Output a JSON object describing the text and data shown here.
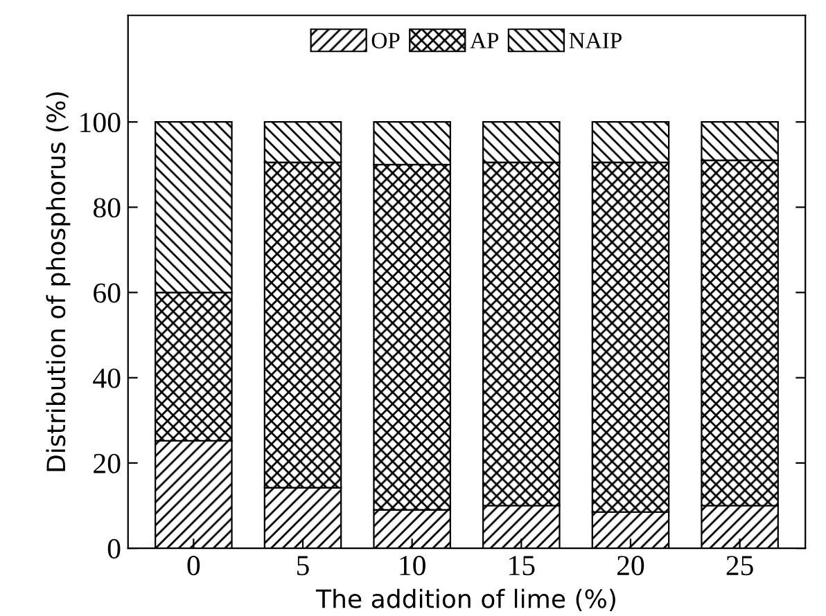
{
  "chart_data": {
    "type": "bar",
    "stacked": true,
    "xlabel": "The addition of lime (%)",
    "ylabel": "Distribution of phosphorus (%)",
    "categories": [
      "0",
      "5",
      "10",
      "15",
      "20",
      "25"
    ],
    "series": [
      {
        "name": "OP",
        "color": "#000000",
        "values": [
          25.2,
          14.2,
          9.0,
          10.0,
          8.5,
          10.0
        ]
      },
      {
        "name": "AP",
        "color": "#000000",
        "values": [
          34.8,
          76.3,
          81.0,
          80.5,
          82.0,
          81.0
        ]
      },
      {
        "name": "NAIP",
        "color": "#000000",
        "values": [
          40.0,
          9.5,
          10.0,
          9.5,
          9.5,
          9.0
        ]
      }
    ],
    "ylim": [
      0,
      125
    ],
    "yticks": [
      0,
      20,
      40,
      60,
      80,
      100
    ],
    "legend": "top",
    "grid": false
  }
}
